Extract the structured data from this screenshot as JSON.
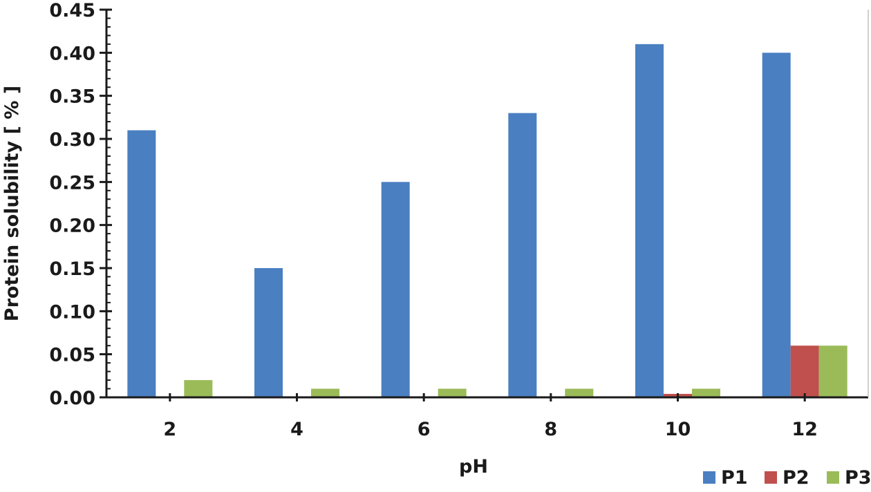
{
  "chart_data": {
    "type": "bar",
    "categories": [
      "2",
      "4",
      "6",
      "8",
      "10",
      "12"
    ],
    "series": [
      {
        "name": "P1",
        "color": "#4a7fc1",
        "values": [
          0.31,
          0.15,
          0.25,
          0.33,
          0.41,
          0.4
        ]
      },
      {
        "name": "P2",
        "color": "#c0504d",
        "values": [
          0.0,
          0.0,
          0.0,
          0.0,
          0.004,
          0.06
        ]
      },
      {
        "name": "P3",
        "color": "#9bbb59",
        "values": [
          0.02,
          0.01,
          0.01,
          0.01,
          0.01,
          0.06
        ]
      }
    ],
    "title": "",
    "xlabel": "pH",
    "ylabel": "Protein solubility [ % ]",
    "ylim": [
      0,
      0.45
    ],
    "ytick_values": [
      0,
      0.05,
      0.1,
      0.15,
      0.2,
      0.25,
      0.3,
      0.35,
      0.4,
      0.45
    ],
    "ytick_labels": [
      "0.00",
      "0.05",
      "0.10",
      "0.15",
      "0.20",
      "0.25",
      "0.30",
      "0.35",
      "0.40",
      "0.45"
    ],
    "minor_ticks_per_major": 5,
    "grid": false,
    "legend_position": "bottom-right"
  }
}
